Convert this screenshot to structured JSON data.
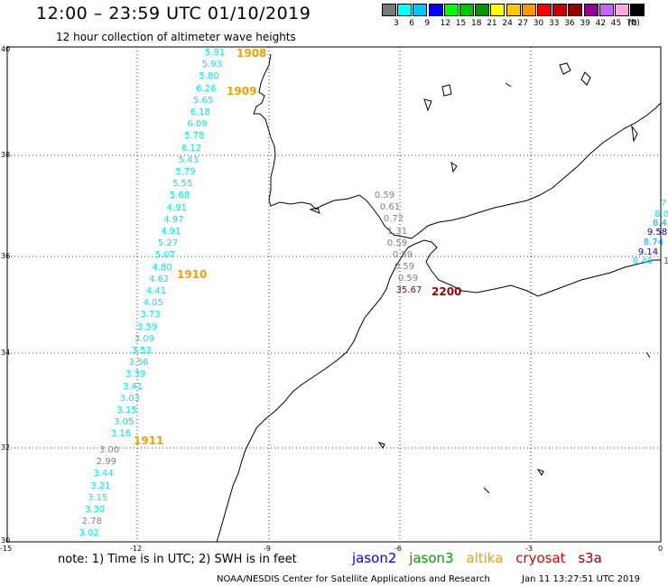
{
  "header": {
    "title": "12:00 – 23:59 UTC 01/10/2019",
    "subtitle": "12 hour collection of altimeter wave heights"
  },
  "colorbar": {
    "colors": [
      "#7a7a7a",
      "#00ffff",
      "#00c8ff",
      "#0000ff",
      "#00ff00",
      "#00c800",
      "#009600",
      "#ffff00",
      "#ffc800",
      "#ff9600",
      "#ff0000",
      "#c80000",
      "#960000",
      "#960096",
      "#c864ff",
      "#ffaadc",
      "#000000"
    ],
    "labels": [
      "3",
      "6",
      "9",
      "12",
      "15",
      "18",
      "21",
      "24",
      "27",
      "30",
      "33",
      "36",
      "39",
      "42",
      "45",
      "70",
      "(ft)"
    ]
  },
  "axes": {
    "y_labels": [
      "40",
      "38",
      "36",
      "34",
      "32",
      "30"
    ],
    "x_labels": [
      "-15",
      "-12",
      "-9",
      "-6",
      "-3",
      "0"
    ]
  },
  "tracks": {
    "altika": {
      "color": "#00e5f0",
      "values": [
        "5.91",
        "5.93",
        "5.80",
        "6.26",
        "5.65",
        "6.18",
        "6.09",
        "5.78",
        "6.12",
        "5.43",
        "5.79",
        "5.55",
        "5.68",
        "4.91",
        "4.97",
        "4.91",
        "5.27",
        "5.07",
        "4.80",
        "4.62",
        "4.41",
        "4.05",
        "3.73",
        "3.59",
        "3.09",
        "3.52",
        "3.56",
        "3.39",
        "3.41",
        "3.03",
        "3.15",
        "3.05",
        "3.16"
      ]
    },
    "altika_south": {
      "values": [
        "3.00",
        "2.99",
        "3.44",
        "3.21",
        "3.15",
        "3.30",
        "2.78",
        "3.02"
      ],
      "colors": [
        "gray",
        "gray",
        "cyan",
        "cyan",
        "cyan",
        "cyan",
        "gray",
        "cyan"
      ]
    },
    "cryosat_strait": {
      "color": "#808080",
      "values": [
        "0.59",
        "0.61",
        "0.72",
        "1.31",
        "0.59",
        "0.59",
        "0.59",
        "0.59"
      ],
      "cut_value": "35.67",
      "cut_color": "#a00000"
    },
    "east_edge": {
      "values": [
        "7",
        "8.0",
        "8.4",
        "9.58",
        "8.74",
        "9.14",
        "8.48",
        "1"
      ],
      "colors": [
        "#00e5f0",
        "#00e5f0",
        "#00aaff",
        "#0000c8",
        "#00aaff",
        "#0000c8",
        "#00e5f0",
        "#00a000"
      ]
    }
  },
  "passes": [
    {
      "label": "1908",
      "color": "#f0a000"
    },
    {
      "label": "1909",
      "color": "#f0a000"
    },
    {
      "label": "1910",
      "color": "#f0a000"
    },
    {
      "label": "1911",
      "color": "#f0a000"
    },
    {
      "label": "2200",
      "color": "#a00000"
    }
  ],
  "footer": {
    "note": "note:  1) Time is in UTC;  2) SWH is in feet",
    "legend": [
      {
        "name": "jason2",
        "color": "#0000ff"
      },
      {
        "name": "jason3",
        "color": "#00a000"
      },
      {
        "name": "altika",
        "color": "#f0a000"
      },
      {
        "name": "cryosat",
        "color": "#e00000"
      },
      {
        "name": "s3a",
        "color": "#a00000"
      }
    ],
    "credit": "NOAA/NESDIS Center for Satellite Applications and Research",
    "timestamp": "Jan 11 13:27:51 UTC 2019"
  }
}
